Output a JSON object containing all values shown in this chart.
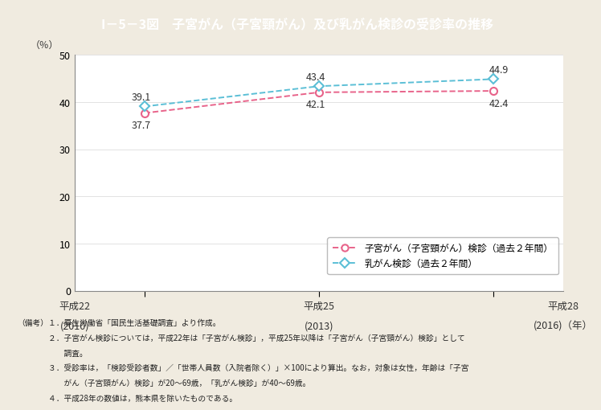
{
  "title": "I－5－3図　子宮がん（子宮頸がん）及び乳がん検診の受診率の推移",
  "title_bg_color": "#2FBCD3",
  "title_text_color": "#ffffff",
  "bg_color": "#F0EBE0",
  "plot_bg_color": "#ffffff",
  "x_labels_line1": [
    "平成22",
    "平成25",
    "平成28"
  ],
  "x_labels_line2": [
    "(2010)",
    "(2013)",
    "(2016)（年）"
  ],
  "x_values": [
    0,
    1,
    2
  ],
  "uterus_values": [
    37.7,
    42.1,
    42.4
  ],
  "uterus_labels": [
    "37.7",
    "42.1",
    "42.4"
  ],
  "breast_values": [
    39.1,
    43.4,
    44.9
  ],
  "breast_labels": [
    "39.1",
    "43.4",
    "44.9"
  ],
  "uterus_color": "#E8638A",
  "breast_color": "#5BBFD6",
  "ylim": [
    0,
    50
  ],
  "yticks": [
    0,
    10,
    20,
    30,
    40,
    50
  ],
  "ylabel": "（％）",
  "legend_uterus": "子宮がん（子宮頸がん）検診（過去２年間）",
  "legend_breast": "乳がん検診（過去２年間）",
  "note_line1": "（備考）１．厚生労働省「国民生活基礎調査」より作成。",
  "note_line2": "　　　　２．子宮がん検診については，平成22年は「子宮がん検診」，平成25年以降は「子宮がん（子宮頸がん）検診」として",
  "note_line3": "　　　　　　調査。",
  "note_line4": "　　　　３．受診率は，「検診受診者数」／「世帯人員数（入院者除く）」×100により算出。なお，対象は女性，年齢は「子宮",
  "note_line5": "　　　　　　がん（子宮頸がん）検診」が20～69歳，「乳がん検診」が40～69歳。",
  "note_line6": "　　　　４．平成28年の数値は，熊本県を除いたものである。"
}
